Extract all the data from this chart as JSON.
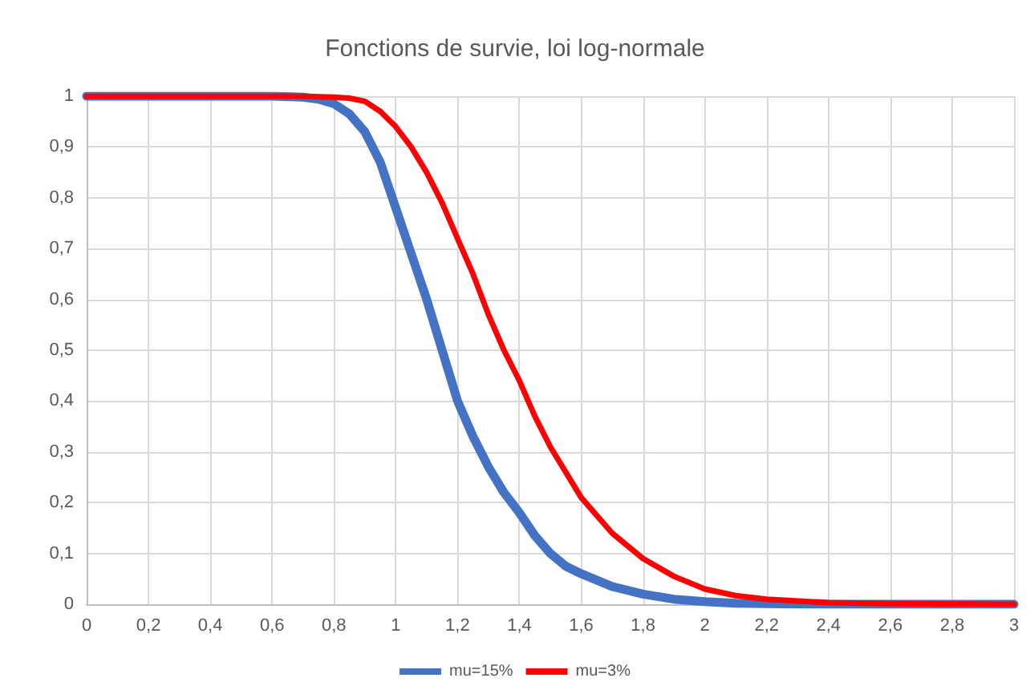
{
  "chart_data": {
    "type": "line",
    "title": "Fonctions de survie, loi log-normale",
    "xlim": [
      0,
      3
    ],
    "ylim": [
      0,
      1
    ],
    "xticks": [
      0,
      {
        "value": 0.2,
        "label": "0,2"
      },
      {
        "value": 0.4,
        "label": "0,4"
      },
      {
        "value": 0.6,
        "label": "0,6"
      },
      {
        "value": 0.8,
        "label": "0,8"
      },
      1,
      {
        "value": 1.2,
        "label": "1,2"
      },
      {
        "value": 1.4,
        "label": "1,4"
      },
      {
        "value": 1.6,
        "label": "1,6"
      },
      {
        "value": 1.8,
        "label": "1,8"
      },
      2,
      {
        "value": 2.2,
        "label": "2,2"
      },
      {
        "value": 2.4,
        "label": "2,4"
      },
      {
        "value": 2.6,
        "label": "2,6"
      },
      {
        "value": 2.8,
        "label": "2,8"
      },
      3
    ],
    "yticks": [
      0,
      {
        "value": 0.1,
        "label": "0,1"
      },
      {
        "value": 0.2,
        "label": "0,2"
      },
      {
        "value": 0.3,
        "label": "0,3"
      },
      {
        "value": 0.4,
        "label": "0,4"
      },
      {
        "value": 0.5,
        "label": "0,5"
      },
      {
        "value": 0.6,
        "label": "0,6"
      },
      {
        "value": 0.7,
        "label": "0,7"
      },
      {
        "value": 0.8,
        "label": "0,8"
      },
      {
        "value": 0.9,
        "label": "0,9"
      },
      1
    ],
    "x": [
      0,
      0.6,
      0.7,
      0.75,
      0.8,
      0.85,
      0.9,
      0.95,
      1,
      1.05,
      1.1,
      1.15,
      1.2,
      1.25,
      1.3,
      1.35,
      1.4,
      1.45,
      1.5,
      1.55,
      1.6,
      1.7,
      1.8,
      1.9,
      2,
      2.1,
      2.2,
      2.4,
      2.6,
      3
    ],
    "series": [
      {
        "name": "mu=15%",
        "color": "#4472c4",
        "values": [
          1,
          1,
          0.998,
          0.994,
          0.985,
          0.965,
          0.93,
          0.87,
          0.78,
          0.69,
          0.6,
          0.5,
          0.4,
          0.33,
          0.27,
          0.22,
          0.18,
          0.135,
          0.1,
          0.075,
          0.06,
          0.035,
          0.02,
          0.01,
          0.005,
          0.002,
          0.001,
          0,
          0,
          0
        ]
      },
      {
        "name": "mu=3%",
        "color": "#ff0000",
        "values": [
          1,
          1,
          1,
          0.999,
          0.998,
          0.996,
          0.99,
          0.97,
          0.94,
          0.9,
          0.85,
          0.79,
          0.72,
          0.65,
          0.57,
          0.5,
          0.44,
          0.37,
          0.31,
          0.26,
          0.21,
          0.14,
          0.09,
          0.055,
          0.03,
          0.017,
          0.01,
          0.003,
          0.001,
          0
        ]
      }
    ],
    "grid": true,
    "legend": "bottom",
    "marker": "none",
    "line_style": "solid"
  }
}
